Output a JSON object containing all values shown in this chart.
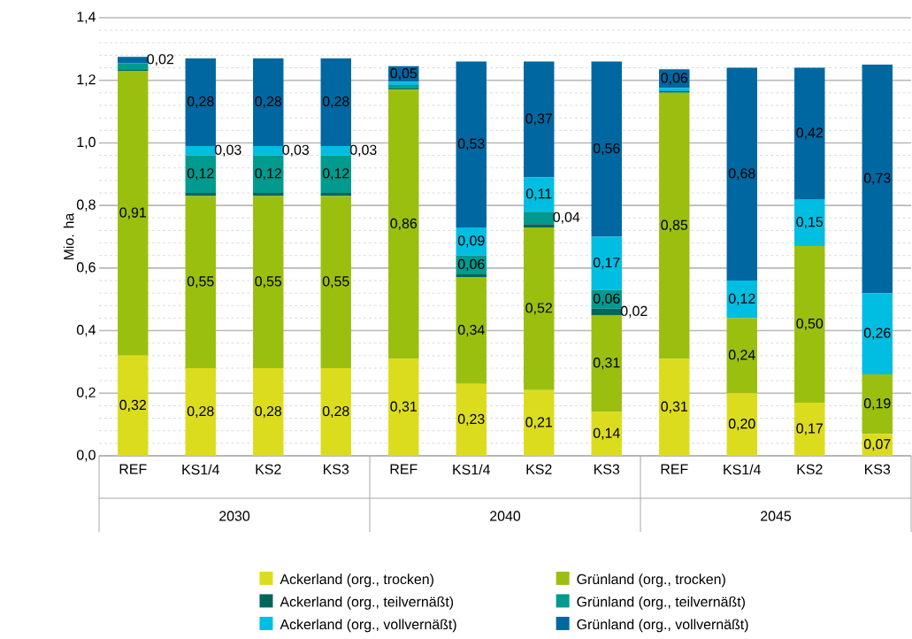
{
  "chart_data": {
    "type": "bar",
    "stacked": true,
    "ylabel": "Mio. ha",
    "categories": [
      "REF",
      "KS1/4",
      "KS2",
      "KS3",
      "REF",
      "KS1/4",
      "KS2",
      "KS3",
      "REF",
      "KS1/4",
      "KS2",
      "KS3"
    ],
    "annotations": [
      "2030",
      "2040",
      "2045"
    ],
    "series": [
      {
        "name": "Ackerland (org., trocken)",
        "color": "#dcdc1e",
        "values": [
          0.32,
          0.28,
          0.28,
          0.28,
          0.31,
          0.23,
          0.21,
          0.14,
          0.31,
          0.2,
          0.17,
          0.07
        ],
        "value_labels": [
          "0,32",
          "0,28",
          "0,28",
          "0,28",
          "0,31",
          "0,23",
          "0,21",
          "0,14",
          "0,31",
          "0,20",
          "0,17",
          "0,07"
        ]
      },
      {
        "name": "Grünland (org., trocken)",
        "color": "#9bbf0f",
        "values": [
          0.91,
          0.55,
          0.55,
          0.55,
          0.86,
          0.34,
          0.52,
          0.31,
          0.85,
          0.24,
          0.5,
          0.19
        ],
        "value_labels": [
          "0,91",
          "0,55",
          "0,55",
          "0,55",
          "0,86",
          "0,34",
          "0,52",
          "0,31",
          "0,85",
          "0,24",
          "0,50",
          "0,19"
        ]
      },
      {
        "name": "Ackerland (org., teilvernäßt)",
        "color": "#00665a",
        "values": [
          0.005,
          0.01,
          0.01,
          0.01,
          0.005,
          0.01,
          0.01,
          0.02,
          0.005,
          0,
          0,
          0
        ],
        "value_labels": [
          null,
          null,
          null,
          null,
          null,
          null,
          null,
          "0,02",
          null,
          null,
          null,
          null
        ]
      },
      {
        "name": "Grünland (org., teilvernäßt)",
        "color": "#009a8e",
        "values": [
          0.02,
          0.12,
          0.12,
          0.12,
          0.01,
          0.06,
          0.04,
          0.06,
          0,
          0,
          0,
          0
        ],
        "value_labels": [
          null,
          "0,12",
          "0,12",
          "0,12",
          null,
          "0,06",
          "0,04",
          "0,06",
          null,
          null,
          null,
          null
        ]
      },
      {
        "name": "Ackerland (org., vollvernäßt)",
        "color": "#00bde2",
        "values": [
          0,
          0.03,
          0.03,
          0.03,
          0.01,
          0.09,
          0.11,
          0.17,
          0.01,
          0.12,
          0.15,
          0.26
        ],
        "value_labels": [
          null,
          "0,03",
          "0,03",
          "0,03",
          null,
          "0,09",
          "0,11",
          "0,17",
          null,
          "0,12",
          "0,15",
          "0,26"
        ]
      },
      {
        "name": "Grünland (org., vollvernäßt)",
        "color": "#0067a1",
        "values": [
          0.02,
          0.28,
          0.28,
          0.28,
          0.05,
          0.53,
          0.37,
          0.56,
          0.06,
          0.68,
          0.42,
          0.73
        ],
        "value_labels": [
          "0,02",
          "0,28",
          "0,28",
          "0,28",
          "0,05",
          "0,53",
          "0,37",
          "0,56",
          "0,06",
          "0,68",
          "0,42",
          "0,73"
        ]
      }
    ],
    "ylim": [
      0,
      1.4
    ],
    "yticks": [
      {
        "value": 0,
        "label": "0,0"
      },
      {
        "value": 0.2,
        "label": "0,2"
      },
      {
        "value": 0.4,
        "label": "0,4"
      },
      {
        "value": 0.6,
        "label": "0,6"
      },
      {
        "value": 0.8,
        "label": "0,8"
      },
      {
        "value": 1.0,
        "label": "1,0"
      },
      {
        "value": 1.2,
        "label": "1,2"
      },
      {
        "value": 1.4,
        "label": "1,4"
      }
    ],
    "grid": "y",
    "legend": "bottom"
  }
}
